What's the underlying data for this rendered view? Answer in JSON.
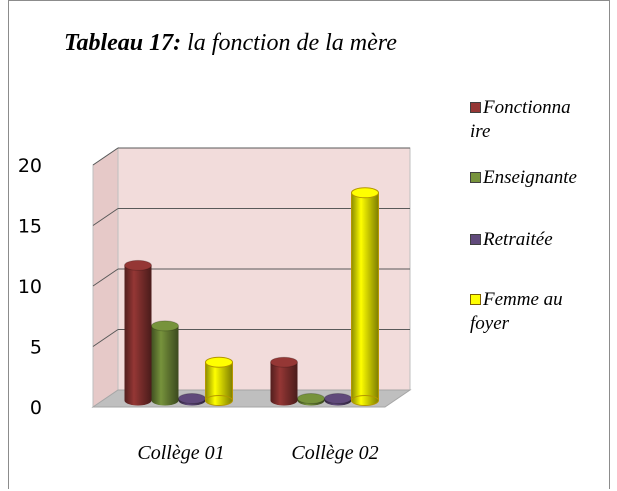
{
  "chart_data": {
    "type": "bar3d",
    "table_number": "Tableau 17:",
    "title": "la fonction de la mère",
    "categories": [
      "Collège 01",
      "Collège 02"
    ],
    "series": [
      {
        "name": "Fonctionnaire",
        "color": "#953735",
        "values": [
          11,
          3
        ]
      },
      {
        "name": "Enseignante",
        "color": "#77933c",
        "values": [
          6,
          0
        ]
      },
      {
        "name": "Retraitée",
        "color": "#604a7b",
        "values": [
          0,
          0
        ]
      },
      {
        "name": "Femme au foyer",
        "color": "#ffff00",
        "values": [
          3,
          17
        ]
      }
    ],
    "ylim": [
      0,
      20
    ],
    "yticks": [
      0,
      5,
      10,
      15,
      20
    ],
    "grid": true,
    "legend": "right"
  }
}
